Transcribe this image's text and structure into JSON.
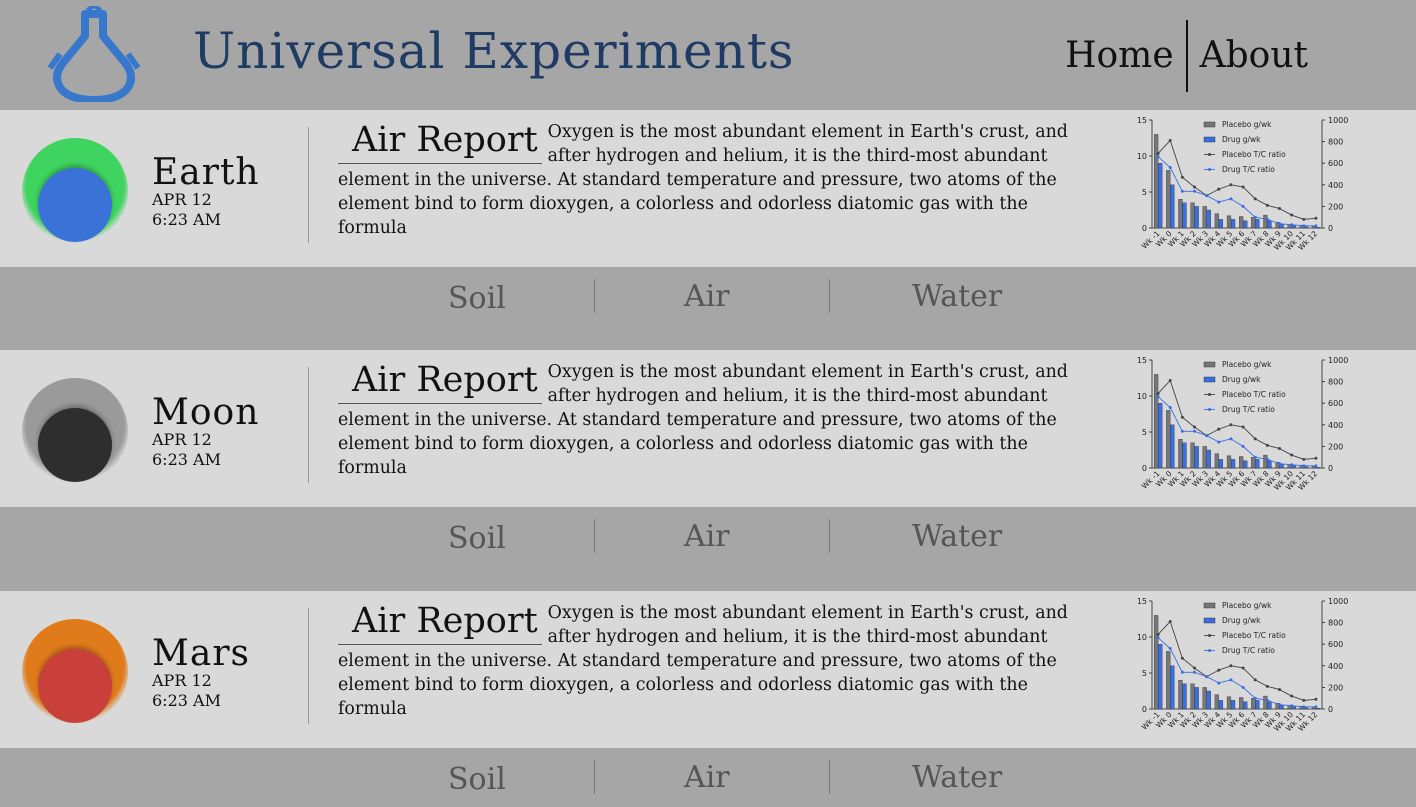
{
  "header": {
    "brand": "Universal Experiments",
    "nav": [
      "Home",
      "About"
    ]
  },
  "reports": [
    {
      "planet": "Earth",
      "date": "APR 12",
      "time": "6:23 AM",
      "colors": {
        "outer": "#3fd45f",
        "inner": "#3a72d8"
      },
      "title": "Air Report",
      "body": "Oxygen is the most abundant element in Earth's crust, and after hydrogen and helium, it is the third-most abundant element in the universe. At standard temperature and pressure, two atoms of the element bind to form dioxygen, a colorless and odorless diatomic gas with the formula",
      "tabs": [
        "Soil",
        "Air",
        "Water"
      ]
    },
    {
      "planet": "Moon",
      "date": "APR 12",
      "time": "6:23 AM",
      "colors": {
        "outer": "#9a9a9a",
        "inner": "#2e2e2e"
      },
      "title": "Air Report",
      "body": "Oxygen is the most abundant element in Earth's crust, and after hydrogen and helium, it is the third-most abundant element in the universe. At standard temperature and pressure, two atoms of the element bind to form dioxygen, a colorless and odorless diatomic gas with the formula",
      "tabs": [
        "Soil",
        "Air",
        "Water"
      ]
    },
    {
      "planet": "Mars",
      "date": "APR 12",
      "time": "6:23 AM",
      "colors": {
        "outer": "#e07b1c",
        "inner": "#c9403a"
      },
      "title": "Air Report",
      "body": "Oxygen is the most abundant element in Earth's crust, and after hydrogen and helium, it is the third-most abundant element in the universe. At standard temperature and pressure, two atoms of the element bind to form dioxygen, a colorless and odorless diatomic gas with the formula",
      "tabs": [
        "Soil",
        "Air",
        "Water"
      ]
    }
  ],
  "chart_data": {
    "type": "bar",
    "categories": [
      "Wk -1",
      "Wk 0",
      "Wk 1",
      "Wk 2",
      "Wk 3",
      "Wk 4",
      "Wk 5",
      "Wk 6",
      "Wk 7",
      "Wk 8",
      "Wk 9",
      "Wk 10",
      "Wk 11",
      "Wk 12"
    ],
    "series": [
      {
        "name": "Placebo g/wk",
        "kind": "bar",
        "axis": "left",
        "color": "#777777",
        "values": [
          13,
          8,
          4,
          3.5,
          3,
          2,
          1.7,
          1.6,
          1.5,
          1.8,
          0.8,
          0.5,
          0.4,
          0.3
        ]
      },
      {
        "name": "Drug g/wk",
        "kind": "bar",
        "axis": "left",
        "color": "#3a6fe0",
        "values": [
          9,
          6,
          3.5,
          3,
          2.5,
          1.2,
          1.2,
          1.0,
          1.2,
          1.0,
          0.5,
          0.3,
          0.2,
          0.1
        ]
      },
      {
        "name": "Placebo T/C ratio",
        "kind": "line",
        "axis": "right",
        "color": "#444444",
        "values": [
          690,
          810,
          470,
          380,
          300,
          360,
          400,
          380,
          270,
          210,
          180,
          120,
          80,
          90
        ]
      },
      {
        "name": "Drug T/C ratio",
        "kind": "line",
        "axis": "right",
        "color": "#3a6fe0",
        "values": [
          660,
          560,
          340,
          340,
          300,
          240,
          270,
          200,
          100,
          80,
          40,
          30,
          20,
          20
        ]
      }
    ],
    "yleft": {
      "lim": [
        0,
        15
      ],
      "ticks": [
        0,
        5,
        10,
        15
      ]
    },
    "yright": {
      "lim": [
        0,
        1000
      ],
      "ticks": [
        0,
        200,
        400,
        600,
        800,
        1000
      ]
    },
    "legend": "top-center"
  }
}
